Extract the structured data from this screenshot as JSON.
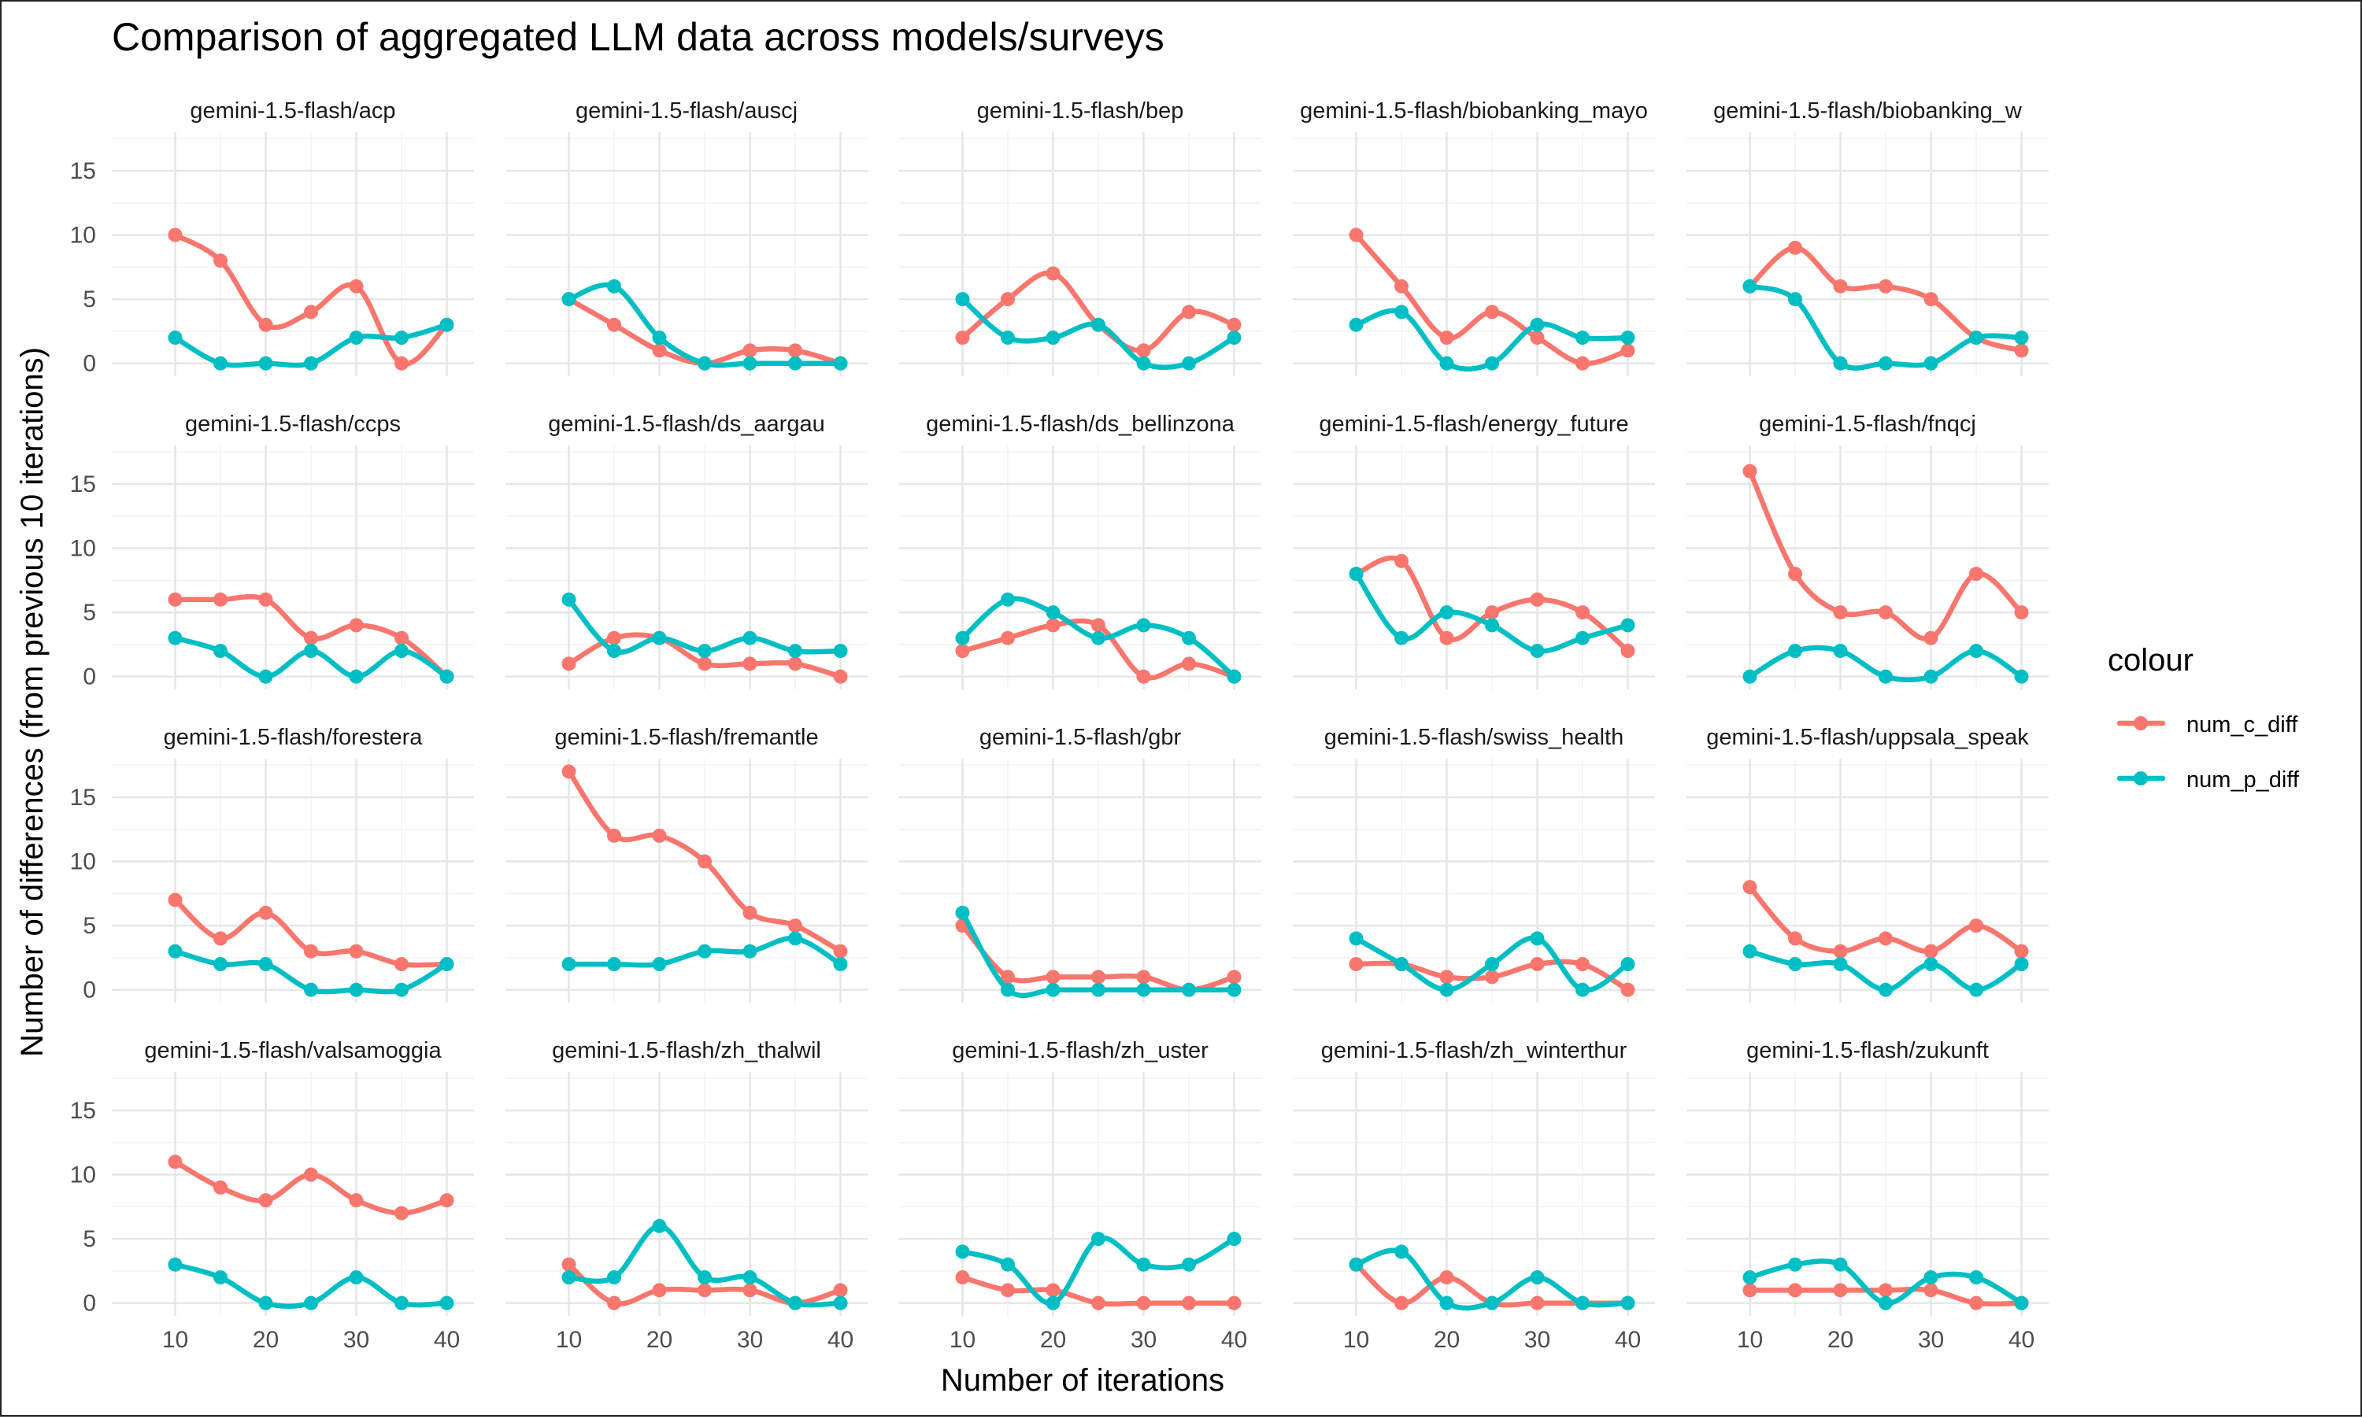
{
  "chart_data": {
    "type": "line",
    "title": "Comparison of aggregated LLM data across models/surveys",
    "xlabel": "Number of iterations",
    "ylabel": "Number of differences (from previous 10 iterations)",
    "x_ticks": [
      10,
      20,
      30,
      40
    ],
    "y_ticks": [
      0,
      5,
      10,
      15
    ],
    "xlim": [
      3,
      43
    ],
    "ylim": [
      -1,
      18
    ],
    "grid": true,
    "legend_title": "colour",
    "legend_position": "right",
    "series": [
      {
        "name": "num_c_diff",
        "color": "#F8766D"
      },
      {
        "name": "num_p_diff",
        "color": "#00BFC4"
      }
    ],
    "x": [
      10,
      15,
      20,
      25,
      30,
      35,
      40
    ],
    "panels": [
      {
        "label": "gemini-1.5-flash/acp",
        "num_c_diff": [
          10,
          8,
          3,
          4,
          6,
          0,
          3
        ],
        "num_p_diff": [
          2,
          0,
          0,
          0,
          2,
          2,
          3
        ]
      },
      {
        "label": "gemini-1.5-flash/auscj",
        "num_c_diff": [
          5,
          3,
          1,
          0,
          1,
          1,
          0
        ],
        "num_p_diff": [
          5,
          6,
          2,
          0,
          0,
          0,
          0
        ]
      },
      {
        "label": "gemini-1.5-flash/bep",
        "num_c_diff": [
          2,
          5,
          7,
          3,
          1,
          4,
          3
        ],
        "num_p_diff": [
          5,
          2,
          2,
          3,
          0,
          0,
          2
        ]
      },
      {
        "label": "gemini-1.5-flash/biobanking_mayo",
        "num_c_diff": [
          10,
          6,
          2,
          4,
          2,
          0,
          1
        ],
        "num_p_diff": [
          3,
          4,
          0,
          0,
          3,
          2,
          2
        ]
      },
      {
        "label": "gemini-1.5-flash/biobanking_w",
        "num_c_diff": [
          6,
          9,
          6,
          6,
          5,
          2,
          1
        ],
        "num_p_diff": [
          6,
          5,
          0,
          0,
          0,
          2,
          2
        ]
      },
      {
        "label": "gemini-1.5-flash/ccps",
        "num_c_diff": [
          6,
          6,
          6,
          3,
          4,
          3,
          0
        ],
        "num_p_diff": [
          3,
          2,
          0,
          2,
          0,
          2,
          0
        ]
      },
      {
        "label": "gemini-1.5-flash/ds_aargau",
        "num_c_diff": [
          1,
          3,
          3,
          1,
          1,
          1,
          0
        ],
        "num_p_diff": [
          6,
          2,
          3,
          2,
          3,
          2,
          2
        ]
      },
      {
        "label": "gemini-1.5-flash/ds_bellinzona",
        "num_c_diff": [
          2,
          3,
          4,
          4,
          0,
          1,
          0
        ],
        "num_p_diff": [
          3,
          6,
          5,
          3,
          4,
          3,
          0
        ]
      },
      {
        "label": "gemini-1.5-flash/energy_future",
        "num_c_diff": [
          8,
          9,
          3,
          5,
          6,
          5,
          2
        ],
        "num_p_diff": [
          8,
          3,
          5,
          4,
          2,
          3,
          4
        ]
      },
      {
        "label": "gemini-1.5-flash/fnqcj",
        "num_c_diff": [
          16,
          8,
          5,
          5,
          3,
          8,
          5
        ],
        "num_p_diff": [
          0,
          2,
          2,
          0,
          0,
          2,
          0
        ]
      },
      {
        "label": "gemini-1.5-flash/forestera",
        "num_c_diff": [
          7,
          4,
          6,
          3,
          3,
          2,
          2
        ],
        "num_p_diff": [
          3,
          2,
          2,
          0,
          0,
          0,
          2
        ]
      },
      {
        "label": "gemini-1.5-flash/fremantle",
        "num_c_diff": [
          17,
          12,
          12,
          10,
          6,
          5,
          3
        ],
        "num_p_diff": [
          2,
          2,
          2,
          3,
          3,
          4,
          2
        ]
      },
      {
        "label": "gemini-1.5-flash/gbr",
        "num_c_diff": [
          5,
          1,
          1,
          1,
          1,
          0,
          1
        ],
        "num_p_diff": [
          6,
          0,
          0,
          0,
          0,
          0,
          0
        ]
      },
      {
        "label": "gemini-1.5-flash/swiss_health",
        "num_c_diff": [
          2,
          2,
          1,
          1,
          2,
          2,
          0
        ],
        "num_p_diff": [
          4,
          2,
          0,
          2,
          4,
          0,
          2
        ]
      },
      {
        "label": "gemini-1.5-flash/uppsala_speak",
        "num_c_diff": [
          8,
          4,
          3,
          4,
          3,
          5,
          3
        ],
        "num_p_diff": [
          3,
          2,
          2,
          0,
          2,
          0,
          2
        ]
      },
      {
        "label": "gemini-1.5-flash/valsamoggia",
        "num_c_diff": [
          11,
          9,
          8,
          10,
          8,
          7,
          8
        ],
        "num_p_diff": [
          3,
          2,
          0,
          0,
          2,
          0,
          0
        ]
      },
      {
        "label": "gemini-1.5-flash/zh_thalwil",
        "num_c_diff": [
          3,
          0,
          1,
          1,
          1,
          0,
          1
        ],
        "num_p_diff": [
          2,
          2,
          6,
          2,
          2,
          0,
          0
        ]
      },
      {
        "label": "gemini-1.5-flash/zh_uster",
        "num_c_diff": [
          2,
          1,
          1,
          0,
          0,
          0,
          0
        ],
        "num_p_diff": [
          4,
          3,
          0,
          5,
          3,
          3,
          5
        ]
      },
      {
        "label": "gemini-1.5-flash/zh_winterthur",
        "num_c_diff": [
          3,
          0,
          2,
          0,
          0,
          0,
          0
        ],
        "num_p_diff": [
          3,
          4,
          0,
          0,
          2,
          0,
          0
        ]
      },
      {
        "label": "gemini-1.5-flash/zukunft",
        "num_c_diff": [
          1,
          1,
          1,
          1,
          1,
          0,
          0
        ],
        "num_p_diff": [
          2,
          3,
          3,
          0,
          2,
          2,
          0
        ]
      }
    ]
  }
}
